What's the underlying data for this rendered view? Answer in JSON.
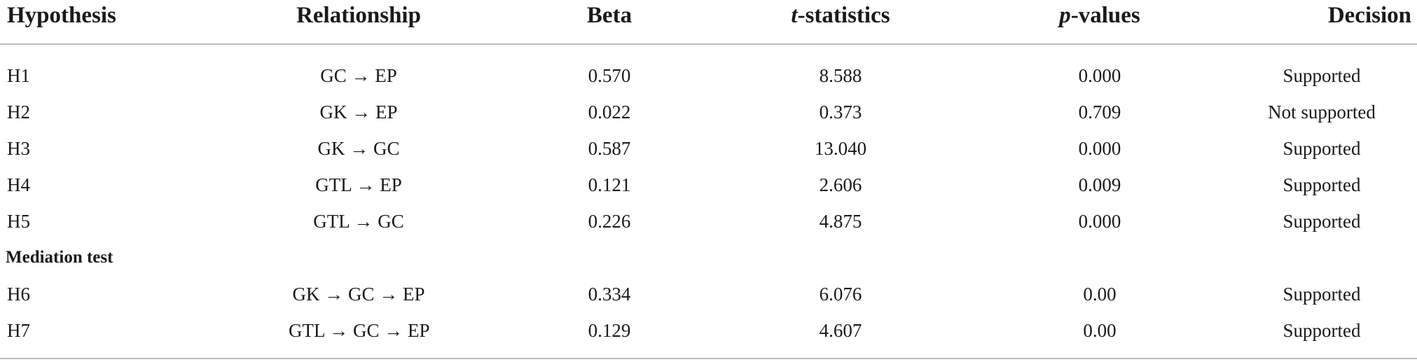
{
  "table": {
    "headers": {
      "hypothesis": "Hypothesis",
      "relationship": "Relationship",
      "beta": "Beta",
      "t_italic": "t",
      "t_rest": "-statistics",
      "p_italic": "p",
      "p_rest": "-values",
      "decision": "Decision"
    },
    "rows": [
      {
        "hypothesis": "H1",
        "relationship": "GC → EP",
        "beta": "0.570",
        "t": "8.588",
        "p": "0.000",
        "decision": "Supported"
      },
      {
        "hypothesis": "H2",
        "relationship": "GK → EP",
        "beta": "0.022",
        "t": "0.373",
        "p": "0.709",
        "decision": "Not supported"
      },
      {
        "hypothesis": "H3",
        "relationship": "GK → GC",
        "beta": "0.587",
        "t": "13.040",
        "p": "0.000",
        "decision": "Supported"
      },
      {
        "hypothesis": "H4",
        "relationship": "GTL → EP",
        "beta": "0.121",
        "t": "2.606",
        "p": "0.009",
        "decision": "Supported"
      },
      {
        "hypothesis": "H5",
        "relationship": "GTL → GC",
        "beta": "0.226",
        "t": "4.875",
        "p": "0.000",
        "decision": "Supported"
      }
    ],
    "section_label": "Mediation test",
    "mediation_rows": [
      {
        "hypothesis": "H6",
        "relationship": "GK → GC → EP",
        "beta": "0.334",
        "t": "6.076",
        "p": "0.00",
        "decision": "Supported"
      },
      {
        "hypothesis": "H7",
        "relationship": "GTL → GC → EP",
        "beta": "0.129",
        "t": "4.607",
        "p": "0.00",
        "decision": "Supported"
      }
    ]
  }
}
